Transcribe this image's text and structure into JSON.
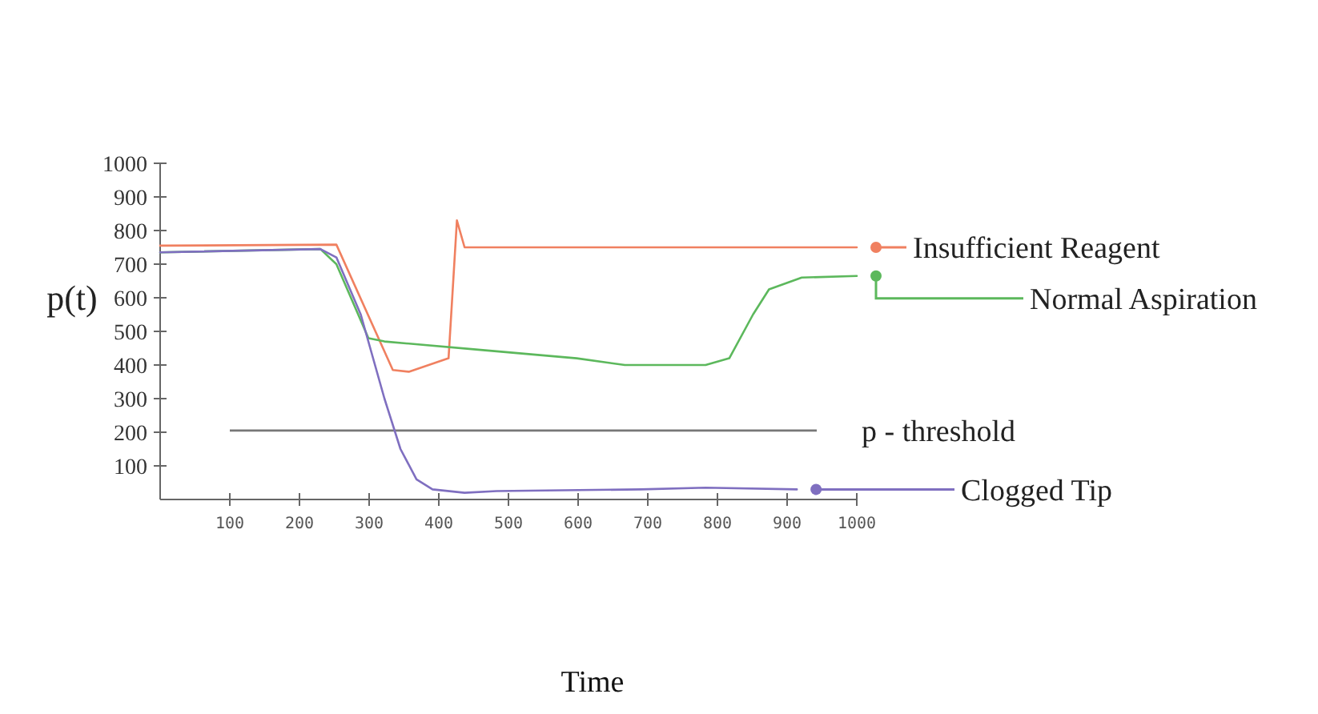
{
  "chart_data": {
    "type": "line",
    "xlabel": "Time",
    "ylabel": "p(t)",
    "xlim": [
      0,
      1000
    ],
    "xticks": [
      100,
      200,
      300,
      400,
      500,
      600,
      700,
      800,
      900,
      1000
    ],
    "ylim": [
      0,
      1000
    ],
    "yticks": [
      100,
      200,
      300,
      400,
      500,
      600,
      700,
      800,
      900,
      1000
    ],
    "grid": false,
    "legend": "right",
    "marker": "none",
    "line_style": "solid",
    "ref_lines": [
      {
        "axis": "y",
        "value": 205,
        "label": "p - threshold",
        "color": "#777777"
      }
    ],
    "series": [
      {
        "name": "Insufficient Reagent",
        "color": "#f08060",
        "x": [
          0,
          253,
          334,
          357,
          414,
          426,
          437,
          792,
          1000
        ],
        "values": [
          755,
          758,
          385,
          380,
          420,
          830,
          750,
          750,
          750
        ]
      },
      {
        "name": "Normal Aspiration",
        "color": "#5cb85c",
        "x": [
          0,
          230,
          253,
          299,
          322,
          460,
          598,
          667,
          783,
          817,
          851,
          874,
          921,
          1000
        ],
        "values": [
          735,
          745,
          700,
          480,
          470,
          445,
          420,
          400,
          400,
          420,
          550,
          625,
          660,
          665
        ]
      },
      {
        "name": "Clogged Tip",
        "color": "#7f6fc0",
        "x": [
          0,
          230,
          253,
          288,
          322,
          345,
          368,
          391,
          437,
          483,
          690,
          783,
          914
        ],
        "values": [
          735,
          745,
          720,
          550,
          300,
          150,
          60,
          30,
          20,
          25,
          30,
          35,
          30
        ]
      }
    ]
  }
}
